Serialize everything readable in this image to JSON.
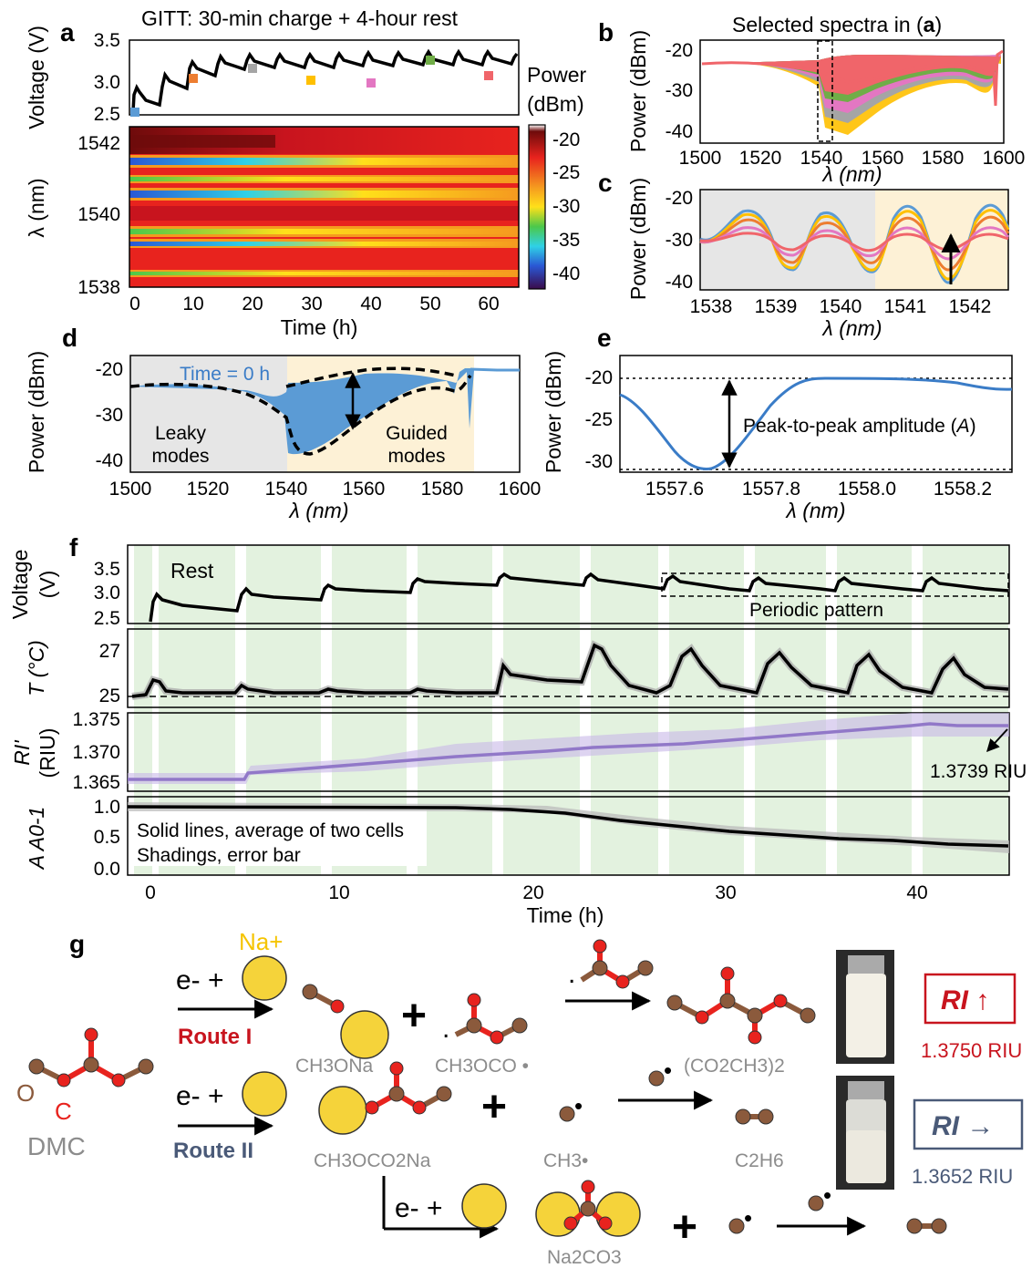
{
  "panel_letters": {
    "a": "a",
    "b": "b",
    "c": "c",
    "d": "d",
    "e": "e",
    "f": "f",
    "g": "g"
  },
  "panel_a": {
    "title": "GITT: 30-min charge + 4-hour rest",
    "voltage_ylabel": "Voltage (V)",
    "voltage_ticks": [
      "3.5",
      "3.0",
      "2.5"
    ],
    "lambda_ylabel": "λ (nm)",
    "lambda_ticks": [
      "1542",
      "1540",
      "1538"
    ],
    "xlabel": "Time (h)",
    "x_ticks": [
      "0",
      "10",
      "20",
      "30",
      "40",
      "50",
      "60"
    ],
    "colorbar_title_1": "Power",
    "colorbar_title_2": "(dBm)",
    "colorbar_ticks": [
      "-20",
      "-25",
      "-30",
      "-35",
      "-40"
    ],
    "colors": {
      "red": "#e8231e",
      "orange": "#f59a1f",
      "yellow": "#ffe01a",
      "green": "#4cc84a",
      "cyan": "#2fd1e6",
      "blue": "#2a57d4",
      "violet": "#7d1fc2",
      "darkred": "#6e0b0b"
    }
  },
  "panel_b": {
    "title_prefix": "Selected spectra in (",
    "title_bold": "a",
    "title_suffix": ")",
    "ylabel": "Power (dBm)",
    "y_ticks": [
      "-20",
      "-30",
      "-40"
    ],
    "x_ticks": [
      "1500",
      "1520",
      "1540",
      "1560",
      "1580",
      "1600"
    ],
    "xlabel": "λ (nm)"
  },
  "panel_c": {
    "ylabel": "Power (dBm)",
    "y_ticks": [
      "-20",
      "-30",
      "-40"
    ],
    "x_ticks": [
      "1538",
      "1539",
      "1540",
      "1541",
      "1542"
    ],
    "xlabel": "λ (nm)"
  },
  "panel_d": {
    "ylabel": "Power (dBm)",
    "y_ticks": [
      "-20",
      "-30",
      "-40"
    ],
    "x_ticks": [
      "1500",
      "1520",
      "1540",
      "1560",
      "1580",
      "1600"
    ],
    "xlabel": "λ (nm)",
    "time_label": "Time = 0 h",
    "leaky_1": "Leaky",
    "leaky_2": "modes",
    "guided_1": "Guided",
    "guided_2": "modes"
  },
  "panel_e": {
    "ylabel": "Power (dBm)",
    "y_ticks": [
      "-20",
      "-25",
      "-30"
    ],
    "x_ticks": [
      "1557.6",
      "1557.8",
      "1558.0",
      "1558.2"
    ],
    "xlabel": "λ (nm)",
    "annotation_prefix": "Peak-to-peak amplitude (",
    "annotation_var": "A",
    "annotation_suffix": ")"
  },
  "panel_f": {
    "voltage_ylabel_1": "Voltage",
    "voltage_ylabel_2": "(V)",
    "voltage_ticks": [
      "3.5",
      "3.0",
      "2.5"
    ],
    "rest_label": "Rest",
    "periodic_label": "Periodic pattern",
    "temp_ylabel": "T (°C)",
    "temp_ticks": [
      "27",
      "25"
    ],
    "ri_ylabel_1": "RI'",
    "ri_ylabel_2": "(RIU)",
    "ri_ticks": [
      "1.375",
      "1.370",
      "1.365"
    ],
    "ri_annotation": "1.3739 RIU",
    "amp_ylabel": "A A0-1",
    "amp_ticks": [
      "1.0",
      "0.5",
      "0.0"
    ],
    "note_1": "Solid lines, average of two cells",
    "note_2": "Shadings, error bar",
    "x_ticks": [
      "0",
      "10",
      "20",
      "30",
      "40"
    ],
    "xlabel": "Time (h)"
  },
  "panel_g": {
    "na_label": "Na+",
    "electron_plus": "e- +",
    "route1": "Route I",
    "route2": "Route II",
    "atom_O": "O",
    "atom_C": "C",
    "dmc": "DMC",
    "ch3ona": "CH3ONa",
    "ch3oco": "CH3OCO •",
    "co2ch3": "(CO2CH3)2",
    "ch3oco2na": "CH3OCO2Na",
    "ch3": "CH3•",
    "c2h6": "C2H6",
    "na2co3": "Na2CO3",
    "ri_up": "RI ↑",
    "ri_up_value": "1.3750 RIU",
    "ri_flat": "RI →",
    "ri_flat_value": "1.3652 RIU",
    "colors": {
      "atom_C": "#8b5a3c",
      "atom_O": "#e8231e",
      "atom_Na": "#f5d33a",
      "route1": "#c8141e",
      "route2": "#4a5a78",
      "gray": "#8c8c8c"
    }
  }
}
